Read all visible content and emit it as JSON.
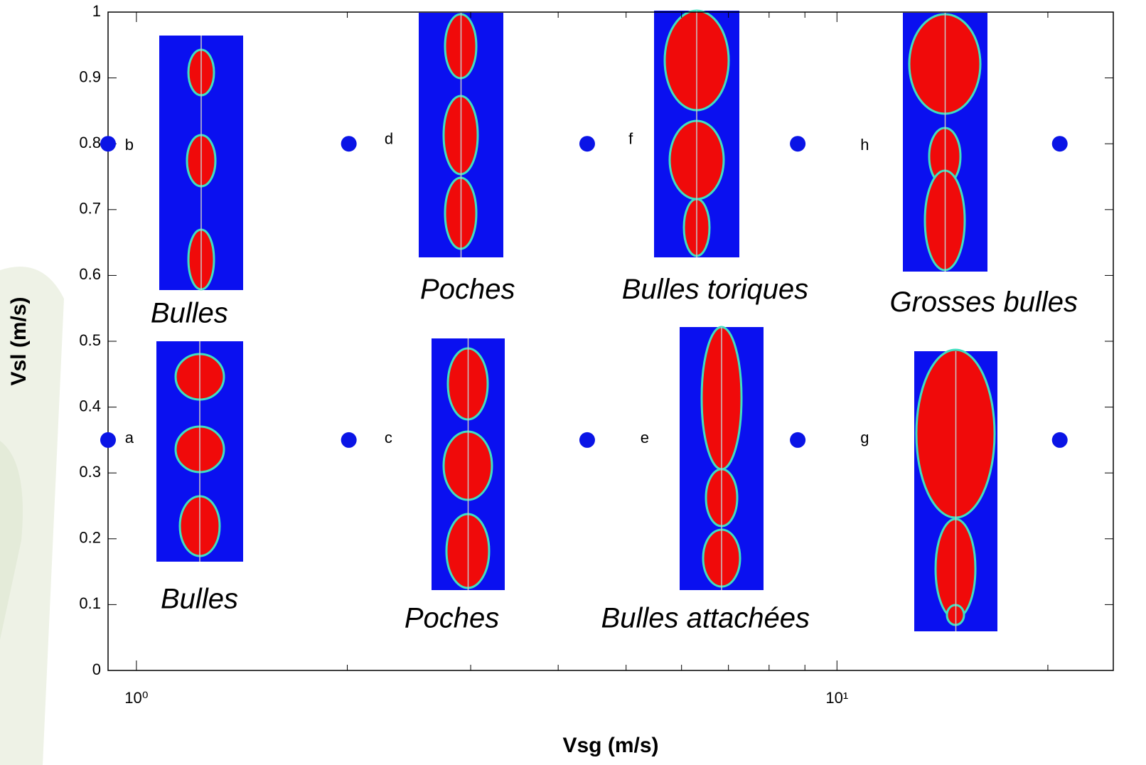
{
  "chart_data": {
    "type": "scatter",
    "x_label": "Vsg (m/s)",
    "y_label": "Vsl (m/s)",
    "x_scale": "log",
    "xlim": [
      0.911,
      24.8
    ],
    "ylim": [
      0,
      1
    ],
    "xticks": [
      {
        "value": 1,
        "label": "10⁰"
      },
      {
        "value": 10,
        "label": "10¹"
      }
    ],
    "xminorticks": [
      2,
      3,
      4,
      5,
      6,
      7,
      8,
      9,
      20
    ],
    "yticks": [
      0,
      0.1,
      0.2,
      0.3,
      0.4,
      0.5,
      0.6,
      0.7,
      0.8,
      0.9,
      1
    ],
    "series": [
      {
        "color": "#0a14e6",
        "x": [
          0.911,
          2.01,
          4.4,
          8.79,
          20.8,
          0.911,
          2.01,
          4.4,
          8.79,
          20.8
        ],
        "y": [
          0.8,
          0.8,
          0.8,
          0.8,
          0.8,
          0.35,
          0.35,
          0.35,
          0.35,
          0.35
        ]
      }
    ],
    "annotations": [
      {
        "text": "a",
        "x": 0.963,
        "y": 0.352
      },
      {
        "text": "b",
        "x": 0.963,
        "y": 0.797
      },
      {
        "text": "c",
        "x": 2.26,
        "y": 0.352
      },
      {
        "text": "d",
        "x": 2.26,
        "y": 0.806
      },
      {
        "text": "e",
        "x": 5.24,
        "y": 0.352
      },
      {
        "text": "f",
        "x": 5.04,
        "y": 0.806
      },
      {
        "text": "g",
        "x": 10.8,
        "y": 0.352
      },
      {
        "text": "h",
        "x": 10.8,
        "y": 0.797
      }
    ],
    "captions": [
      {
        "text": "Bulles",
        "x": 1.19,
        "y": 0.54
      },
      {
        "text": "Poches",
        "x": 2.97,
        "y": 0.576
      },
      {
        "text": "Bulles toriques",
        "x": 6.7,
        "y": 0.576
      },
      {
        "text": "Grosses bulles",
        "x": 16.2,
        "y": 0.557
      },
      {
        "text": "Bulles",
        "x": 1.23,
        "y": 0.106
      },
      {
        "text": "Poches",
        "x": 2.82,
        "y": 0.077
      },
      {
        "text": "Bulles attachées",
        "x": 6.49,
        "y": 0.077
      }
    ]
  }
}
